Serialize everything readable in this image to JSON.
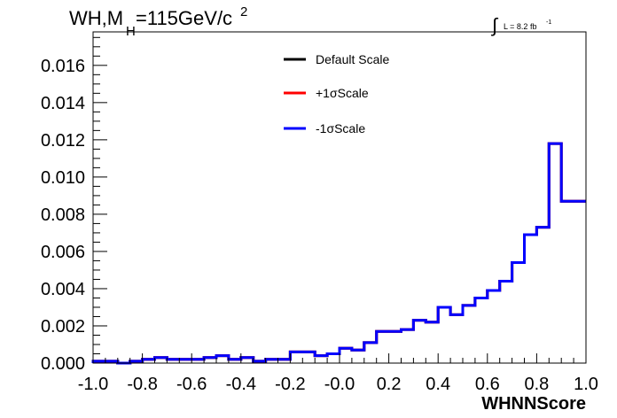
{
  "chart_data": {
    "type": "line",
    "title": {
      "main": "WH,M",
      "sub": "H",
      "tail": "=115GeV/c",
      "sup": "2"
    },
    "lumi": {
      "symbol": "∫",
      "text": "L = 8.2 fb",
      "sup": "-1"
    },
    "xlabel": "WHNNScore",
    "ylabel": "",
    "xlim": [
      -1.0,
      1.0
    ],
    "ylim": [
      0.0,
      0.0178
    ],
    "grid": false,
    "legend_position": "top-center",
    "x_ticks": [
      -1.0,
      -0.8,
      -0.6,
      -0.4,
      -0.2,
      0.0,
      0.2,
      0.4,
      0.6,
      0.8,
      1.0
    ],
    "x_tick_labels": [
      "-1.0",
      "-0.8",
      "-0.6",
      "-0.4",
      "-0.2",
      "-0.0",
      "0.2",
      "0.4",
      "0.6",
      "0.8",
      "1.0"
    ],
    "y_ticks": [
      0.0,
      0.002,
      0.004,
      0.006,
      0.008,
      0.01,
      0.012,
      0.014,
      0.016
    ],
    "y_tick_labels": [
      "0.000",
      "0.002",
      "0.004",
      "0.006",
      "0.008",
      "0.010",
      "0.012",
      "0.014",
      "0.016"
    ],
    "bin_edges": [
      -1.0,
      -0.95,
      -0.9,
      -0.85,
      -0.8,
      -0.75,
      -0.7,
      -0.65,
      -0.6,
      -0.55,
      -0.5,
      -0.45,
      -0.4,
      -0.35,
      -0.3,
      -0.25,
      -0.2,
      -0.15,
      -0.1,
      -0.05,
      0.0,
      0.05,
      0.1,
      0.15,
      0.2,
      0.25,
      0.3,
      0.35,
      0.4,
      0.45,
      0.5,
      0.55,
      0.6,
      0.65,
      0.7,
      0.75,
      0.8,
      0.85,
      0.9,
      0.95,
      1.0
    ],
    "series": [
      {
        "name": "Default Scale",
        "color": "#000000",
        "values": [
          0.0001,
          0.0001,
          0.0,
          0.0001,
          0.0002,
          0.0003,
          0.0002,
          0.0002,
          0.0002,
          0.0003,
          0.0004,
          0.0002,
          0.0003,
          0.0001,
          0.0002,
          0.0002,
          0.0006,
          0.0006,
          0.0004,
          0.0005,
          0.0008,
          0.0007,
          0.0011,
          0.0017,
          0.0017,
          0.0018,
          0.0023,
          0.0022,
          0.003,
          0.0026,
          0.0031,
          0.0035,
          0.0039,
          0.0044,
          0.0054,
          0.0069,
          0.0073,
          0.0118,
          0.0087,
          0.0087
        ]
      },
      {
        "name": "+1σScale",
        "color": "#ff0000",
        "values": [
          0.0001,
          0.0001,
          0.0,
          0.0001,
          0.0002,
          0.0003,
          0.0002,
          0.0002,
          0.0002,
          0.0003,
          0.0004,
          0.0002,
          0.0003,
          0.0001,
          0.0002,
          0.0002,
          0.0006,
          0.0006,
          0.0004,
          0.0005,
          0.0008,
          0.0007,
          0.0011,
          0.0017,
          0.0017,
          0.0018,
          0.0023,
          0.0022,
          0.003,
          0.0026,
          0.0031,
          0.0035,
          0.0039,
          0.0044,
          0.0054,
          0.0069,
          0.0073,
          0.0118,
          0.0087,
          0.0087
        ]
      },
      {
        "name": "-1σScale",
        "color": "#0000ff",
        "values": [
          0.0001,
          0.0001,
          0.0,
          0.0001,
          0.0002,
          0.0003,
          0.0002,
          0.0002,
          0.0002,
          0.0003,
          0.0004,
          0.0002,
          0.0003,
          0.0001,
          0.0002,
          0.0002,
          0.0006,
          0.0006,
          0.0004,
          0.0005,
          0.0008,
          0.0007,
          0.0011,
          0.0017,
          0.0017,
          0.0018,
          0.0023,
          0.0022,
          0.003,
          0.0026,
          0.0031,
          0.0035,
          0.0039,
          0.0044,
          0.0054,
          0.0069,
          0.0073,
          0.0118,
          0.0087,
          0.0087
        ]
      }
    ]
  }
}
